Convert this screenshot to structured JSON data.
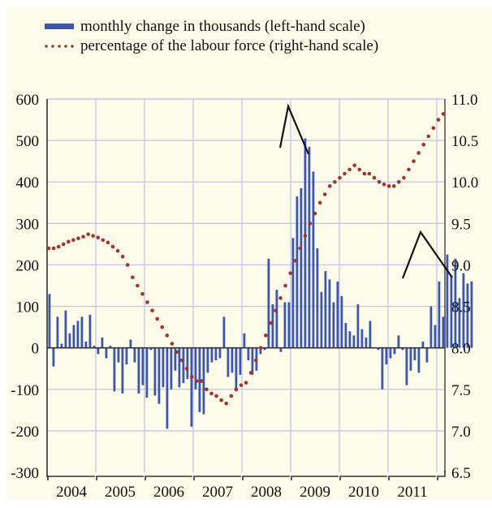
{
  "chart_data": {
    "type": "bar+line",
    "title": "",
    "legend": [
      {
        "name": "monthly change in thousands (left-hand scale)",
        "symbol": "bar",
        "color": "#3a56b0"
      },
      {
        "name": "percentage of the labour force (right-hand scale)",
        "symbol": "dotted-line",
        "color": "#a3342c"
      }
    ],
    "legend_position": "top-left",
    "x_categories": [
      "2004",
      "2005",
      "2006",
      "2007",
      "2008",
      "2009",
      "2010",
      "2011"
    ],
    "left_axis": {
      "label": "",
      "ylim": [
        -300,
        600
      ],
      "ticks": [
        -300,
        -200,
        -100,
        0,
        100,
        200,
        300,
        400,
        500,
        600
      ]
    },
    "right_axis": {
      "label": "",
      "ylim": [
        6.5,
        11.0
      ],
      "ticks": [
        "6.5",
        "7.0",
        "7.5",
        "8.0",
        "8.5",
        "9.0",
        "9.5",
        "10.0",
        "10.5",
        "11.0"
      ]
    },
    "grid": true,
    "series": [
      {
        "name": "monthly change in thousands",
        "type": "bar",
        "axis": "left",
        "color": "#3a56b0",
        "start": "2004-01",
        "values": [
          130,
          -45,
          75,
          10,
          90,
          35,
          55,
          65,
          75,
          15,
          80,
          5,
          -15,
          25,
          -25,
          5,
          -105,
          -35,
          -110,
          -40,
          20,
          -35,
          -110,
          -90,
          -120,
          -5,
          -115,
          -135,
          -95,
          -195,
          -100,
          -55,
          -95,
          -85,
          -75,
          -190,
          -100,
          -155,
          -160,
          -60,
          -35,
          -30,
          -25,
          75,
          -70,
          -60,
          -105,
          -65,
          35,
          -30,
          -65,
          -55,
          -15,
          -5,
          215,
          105,
          140,
          -10,
          110,
          110,
          265,
          365,
          385,
          505,
          485,
          425,
          240,
          135,
          185,
          165,
          110,
          160,
          125,
          60,
          40,
          30,
          105,
          45,
          25,
          65,
          0,
          -5,
          -100,
          -40,
          -25,
          -15,
          30,
          -5,
          -90,
          -55,
          -30,
          -60,
          15,
          -35,
          100,
          55,
          160,
          75,
          225,
          175,
          215,
          120,
          180,
          155,
          160
        ]
      },
      {
        "name": "percentage of the labour force",
        "type": "line",
        "style": "dotted",
        "axis": "right",
        "color": "#a3342c",
        "start": "2004-01",
        "values": [
          9.2,
          9.2,
          9.22,
          9.25,
          9.28,
          9.3,
          9.32,
          9.34,
          9.37,
          9.35,
          9.33,
          9.3,
          9.27,
          9.22,
          9.17,
          9.1,
          9.0,
          8.85,
          8.75,
          8.65,
          8.55,
          8.45,
          8.35,
          8.25,
          8.15,
          8.05,
          7.95,
          7.85,
          7.75,
          7.65,
          7.6,
          7.6,
          7.5,
          7.45,
          7.42,
          7.37,
          7.33,
          7.42,
          7.5,
          7.55,
          7.58,
          7.7,
          7.85,
          8.0,
          8.15,
          8.3,
          8.45,
          8.6,
          8.75,
          8.9,
          9.05,
          9.2,
          9.35,
          9.5,
          9.62,
          9.75,
          9.85,
          9.95,
          10.0,
          10.05,
          10.1,
          10.15,
          10.2,
          10.15,
          10.1,
          10.1,
          10.05,
          10.0,
          9.97,
          9.95,
          9.95,
          10.0,
          10.05,
          10.15,
          10.25,
          10.35,
          10.45,
          10.55,
          10.65,
          10.75,
          10.82
        ]
      }
    ],
    "annotations": [
      {
        "type": "peak-marker",
        "near": "2008-12"
      },
      {
        "type": "peak-marker",
        "near": "2011-07"
      }
    ]
  }
}
